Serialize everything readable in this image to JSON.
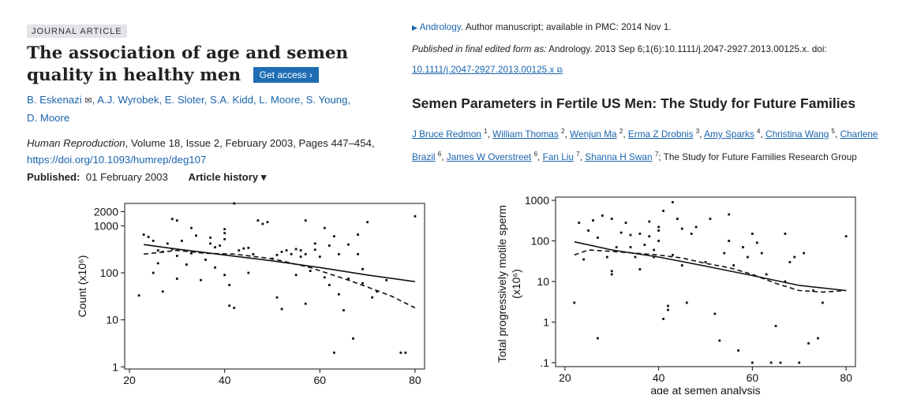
{
  "left_article": {
    "badge": "JOURNAL ARTICLE",
    "title": "The association of age and semen quality in healthy men",
    "get_access": "Get access",
    "get_access_arrow": "›",
    "authors": [
      "B. Eskenazi",
      "A.J. Wyrobek",
      "E. Sloter",
      "S.A. Kidd",
      "L. Moore",
      "S. Young",
      "D. Moore"
    ],
    "journal": "Human Reproduction",
    "citation_rest": ", Volume 18, Issue 2, February 2003, Pages 447–454,",
    "doi": "https://doi.org/10.1093/humrep/deg107",
    "published_label": "Published:",
    "published_date": "01 February 2003",
    "history_label": "Article history ▾"
  },
  "right_article": {
    "journal_link": "Andrology",
    "manuscript_note": ". Author manuscript; available in PMC: 2014 Nov 1.",
    "published_final_label": "Published in final edited form as:",
    "published_final_text": " Andrology. 2013 Sep 6;1(6):10.1111/j.2047-2927.2013.00125.x. doi:",
    "doi_link": "10.1111/j.2047-2927.2013.00125.x",
    "title": "Semen Parameters in Fertile US Men: The Study for Future Families",
    "authors": [
      {
        "name": "J Bruce Redmon",
        "sup": "1"
      },
      {
        "name": "William Thomas",
        "sup": "2"
      },
      {
        "name": "Wenjun Ma",
        "sup": "2"
      },
      {
        "name": "Erma Z Drobnis",
        "sup": "3"
      },
      {
        "name": "Amy Sparks",
        "sup": "4"
      },
      {
        "name": "Christina Wang",
        "sup": "5"
      },
      {
        "name": "Charlene Brazil",
        "sup": "6"
      },
      {
        "name": "James W Overstreet",
        "sup": "6"
      },
      {
        "name": "Fan Liu",
        "sup": "7"
      },
      {
        "name": "Shanna H Swan",
        "sup": "7"
      }
    ],
    "group": "; The Study for Future Families Research Group"
  },
  "chart_data": [
    {
      "type": "scatter",
      "title": "",
      "xlabel": "",
      "ylabel": "Count (x10⁶)",
      "ylog": true,
      "xlim": [
        19,
        82
      ],
      "ylim": [
        0.9,
        3000
      ],
      "xticks": [
        "20",
        "40",
        "60",
        "80"
      ],
      "yticks": [
        {
          "v": 1,
          "l": "1"
        },
        {
          "v": 10,
          "l": "10"
        },
        {
          "v": 100,
          "l": "100"
        },
        {
          "v": 1000,
          "l": "1000"
        },
        {
          "v": 2000,
          "l": "2000"
        }
      ],
      "points": [
        [
          22,
          33
        ],
        [
          23,
          650
        ],
        [
          24,
          580
        ],
        [
          25,
          100
        ],
        [
          25,
          480
        ],
        [
          26,
          300
        ],
        [
          26,
          160
        ],
        [
          27,
          40
        ],
        [
          27,
          280
        ],
        [
          28,
          420
        ],
        [
          29,
          1400
        ],
        [
          29,
          320
        ],
        [
          30,
          75
        ],
        [
          30,
          1300
        ],
        [
          30,
          230
        ],
        [
          31,
          480
        ],
        [
          32,
          150
        ],
        [
          33,
          900
        ],
        [
          33,
          260
        ],
        [
          34,
          620
        ],
        [
          35,
          70
        ],
        [
          36,
          190
        ],
        [
          37,
          420
        ],
        [
          37,
          560
        ],
        [
          38,
          130
        ],
        [
          38,
          350
        ],
        [
          39,
          380
        ],
        [
          40,
          90
        ],
        [
          40,
          520
        ],
        [
          40,
          700
        ],
        [
          40,
          850
        ],
        [
          41,
          20
        ],
        [
          41,
          55
        ],
        [
          42,
          18
        ],
        [
          42,
          3000
        ],
        [
          43,
          300
        ],
        [
          44,
          330
        ],
        [
          45,
          100
        ],
        [
          45,
          340
        ],
        [
          46,
          250
        ],
        [
          47,
          1300
        ],
        [
          48,
          1100
        ],
        [
          49,
          1200
        ],
        [
          50,
          200
        ],
        [
          51,
          240
        ],
        [
          51,
          30
        ],
        [
          52,
          17
        ],
        [
          52,
          280
        ],
        [
          53,
          300
        ],
        [
          54,
          250
        ],
        [
          55,
          320
        ],
        [
          55,
          90
        ],
        [
          56,
          300
        ],
        [
          56,
          220
        ],
        [
          57,
          1300
        ],
        [
          57,
          22
        ],
        [
          57,
          250
        ],
        [
          58,
          110
        ],
        [
          59,
          420
        ],
        [
          59,
          310
        ],
        [
          60,
          220
        ],
        [
          61,
          80
        ],
        [
          61,
          900
        ],
        [
          62,
          380
        ],
        [
          62,
          55
        ],
        [
          63,
          2
        ],
        [
          63,
          600
        ],
        [
          64,
          250
        ],
        [
          64,
          35
        ],
        [
          65,
          16
        ],
        [
          66,
          75
        ],
        [
          66,
          400
        ],
        [
          67,
          4
        ],
        [
          68,
          250
        ],
        [
          68,
          650
        ],
        [
          69,
          120
        ],
        [
          69,
          60
        ],
        [
          70,
          1200
        ],
        [
          71,
          30
        ],
        [
          72,
          40
        ],
        [
          74,
          70
        ],
        [
          77,
          2
        ],
        [
          78,
          2
        ],
        [
          80,
          1600
        ]
      ],
      "series": [
        {
          "style": "solid",
          "x": [
            23,
            30,
            40,
            50,
            60,
            70,
            80
          ],
          "y": [
            400,
            320,
            240,
            180,
            130,
            90,
            65
          ]
        },
        {
          "style": "dashed",
          "x": [
            23,
            30,
            36,
            42,
            50,
            58,
            62,
            66,
            70,
            75,
            80
          ],
          "y": [
            250,
            300,
            260,
            250,
            200,
            130,
            95,
            70,
            50,
            32,
            18
          ]
        }
      ]
    },
    {
      "type": "scatter",
      "title": "",
      "xlabel": "age at semen analysis",
      "ylabel": "Total progressively motile sperm (x10⁶)",
      "ylog": true,
      "xlim": [
        18,
        82
      ],
      "ylim": [
        0.08,
        1200
      ],
      "xticks": [
        "20",
        "40",
        "60",
        "80"
      ],
      "yticks": [
        {
          "v": 0.1,
          "l": ".1"
        },
        {
          "v": 1,
          "l": "1"
        },
        {
          "v": 10,
          "l": "10"
        },
        {
          "v": 100,
          "l": "100"
        },
        {
          "v": 1000,
          "l": "1000"
        }
      ],
      "points": [
        [
          22,
          3
        ],
        [
          23,
          280
        ],
        [
          24,
          35
        ],
        [
          25,
          180
        ],
        [
          26,
          320
        ],
        [
          27,
          0.4
        ],
        [
          27,
          120
        ],
        [
          28,
          420
        ],
        [
          29,
          40
        ],
        [
          30,
          15
        ],
        [
          30,
          18
        ],
        [
          30,
          350
        ],
        [
          31,
          70
        ],
        [
          32,
          160
        ],
        [
          33,
          280
        ],
        [
          34,
          70
        ],
        [
          34,
          140
        ],
        [
          35,
          40
        ],
        [
          36,
          20
        ],
        [
          36,
          150
        ],
        [
          37,
          80
        ],
        [
          38,
          300
        ],
        [
          38,
          130
        ],
        [
          39,
          60
        ],
        [
          39,
          40
        ],
        [
          40,
          220
        ],
        [
          40,
          180
        ],
        [
          40,
          100
        ],
        [
          41,
          1.2
        ],
        [
          41,
          550
        ],
        [
          42,
          2
        ],
        [
          42,
          2.5
        ],
        [
          43,
          900
        ],
        [
          43,
          45
        ],
        [
          44,
          350
        ],
        [
          45,
          200
        ],
        [
          45,
          25
        ],
        [
          46,
          3
        ],
        [
          47,
          150
        ],
        [
          48,
          220
        ],
        [
          50,
          30
        ],
        [
          51,
          350
        ],
        [
          52,
          1.6
        ],
        [
          53,
          0.35
        ],
        [
          54,
          50
        ],
        [
          55,
          100
        ],
        [
          55,
          450
        ],
        [
          56,
          25
        ],
        [
          57,
          0.2
        ],
        [
          58,
          70
        ],
        [
          59,
          40
        ],
        [
          60,
          150
        ],
        [
          60,
          0.1
        ],
        [
          61,
          90
        ],
        [
          62,
          50
        ],
        [
          63,
          15
        ],
        [
          64,
          0.1
        ],
        [
          65,
          0.8
        ],
        [
          66,
          0.1
        ],
        [
          67,
          150
        ],
        [
          67,
          10
        ],
        [
          68,
          30
        ],
        [
          69,
          40
        ],
        [
          70,
          0.1
        ],
        [
          71,
          50
        ],
        [
          72,
          0.3
        ],
        [
          73,
          6
        ],
        [
          74,
          0.4
        ],
        [
          75,
          3
        ],
        [
          80,
          130
        ]
      ],
      "series": [
        {
          "style": "solid",
          "x": [
            22,
            30,
            40,
            50,
            60,
            70,
            80
          ],
          "y": [
            95,
            60,
            40,
            24,
            14,
            8,
            6
          ]
        },
        {
          "style": "dashed",
          "x": [
            22,
            25,
            30,
            35,
            40,
            45,
            50,
            55,
            60,
            65,
            70,
            75,
            80
          ],
          "y": [
            45,
            60,
            55,
            50,
            45,
            38,
            28,
            22,
            15,
            9,
            6,
            5.5,
            6
          ]
        }
      ]
    }
  ]
}
